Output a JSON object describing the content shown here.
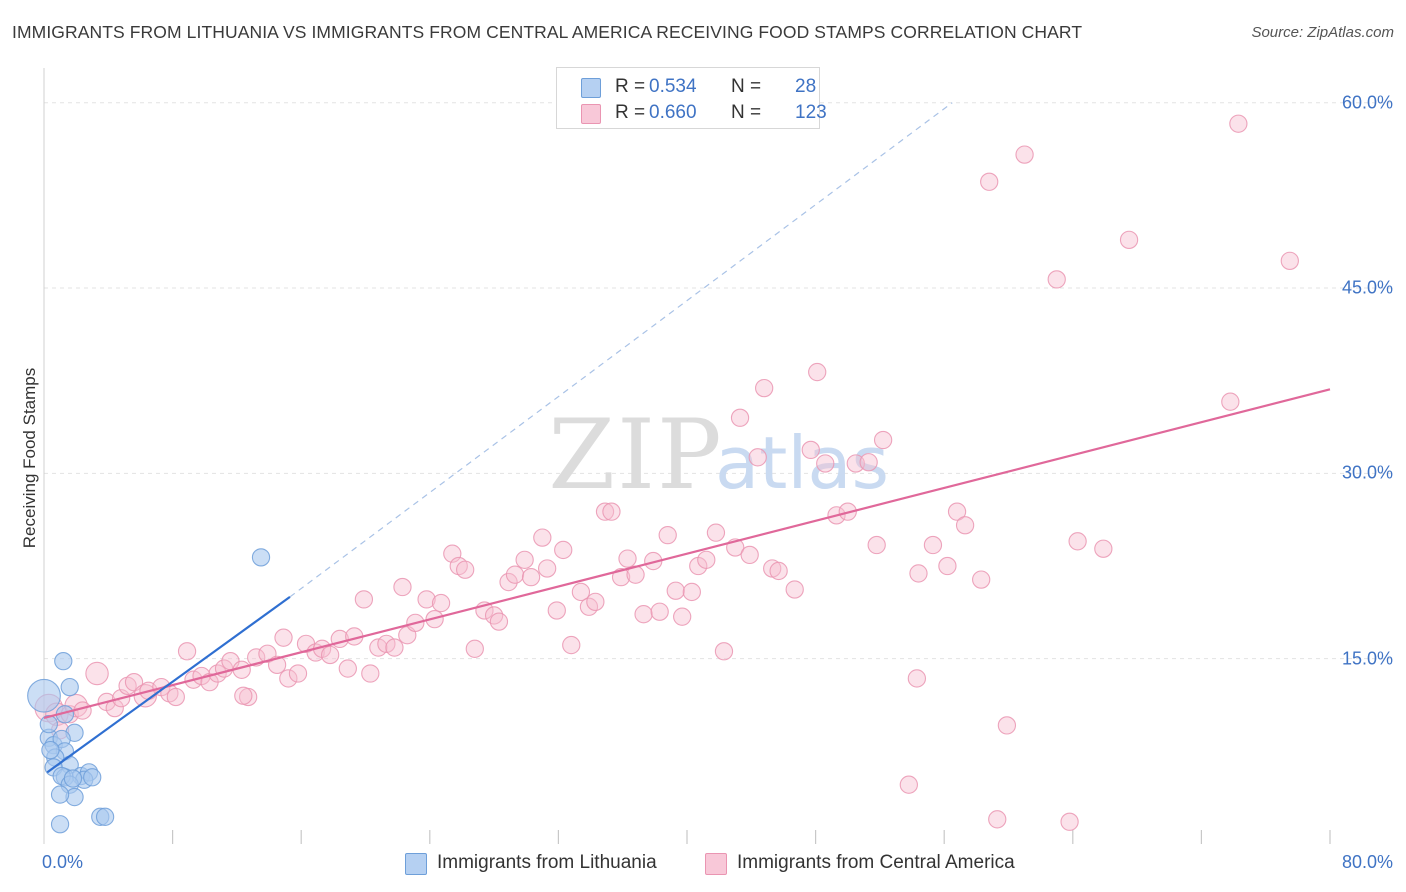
{
  "chart_data": {
    "type": "scatter",
    "title": "IMMIGRANTS FROM LITHUANIA VS IMMIGRANTS FROM CENTRAL AMERICA RECEIVING FOOD STAMPS CORRELATION CHART",
    "source": "Source: ZipAtlas.com",
    "ylabel": "Receiving Food Stamps",
    "xlim": [
      0,
      80
    ],
    "ylim": [
      0,
      62
    ],
    "y_ticks": [
      {
        "value": 15,
        "label": "15.0%"
      },
      {
        "value": 30,
        "label": "30.0%"
      },
      {
        "value": 45,
        "label": "45.0%"
      },
      {
        "value": 60,
        "label": "60.0%"
      }
    ],
    "x_tick_labels": {
      "min": "0.0%",
      "max": "80.0%"
    },
    "watermark": {
      "zip": "ZIP",
      "atlas": "atlas"
    },
    "legend": {
      "r_label": "R =",
      "n_label": "N =",
      "entries": [
        {
          "name": "Immigrants from Lithuania",
          "r": "0.534",
          "n": "28"
        },
        {
          "name": "Immigrants from Central America",
          "r": "0.660",
          "n": "123"
        }
      ]
    },
    "colors": {
      "lithuania_fill": "#a9c8ef",
      "lithuania_stroke": "#6e9fd9",
      "lithuania_line": "#2f6fd1",
      "central_fill": "#f6bfd1",
      "central_stroke": "#ea95b2",
      "central_line": "#e0689a",
      "tick_text": "#3f73c4",
      "grid": "#e3e3e3"
    },
    "series": [
      {
        "name": "Immigrants from Lithuania",
        "trend": {
          "x0": 0.2,
          "y0": 5.8,
          "x1": 15.3,
          "y1": 20.0,
          "dash_x1": 56.5,
          "dash_y1": 60.0
        },
        "points": [
          [
            0.0,
            12.0,
            1.9
          ],
          [
            1.2,
            14.8,
            1
          ],
          [
            1.6,
            12.7,
            1
          ],
          [
            0.3,
            8.6,
            1
          ],
          [
            0.6,
            8.0,
            1
          ],
          [
            1.9,
            9.0,
            1
          ],
          [
            1.1,
            8.5,
            1
          ],
          [
            1.3,
            7.5,
            1
          ],
          [
            0.7,
            7.0,
            1
          ],
          [
            1.6,
            6.4,
            1
          ],
          [
            0.6,
            6.2,
            1
          ],
          [
            1.3,
            5.4,
            1
          ],
          [
            2.3,
            5.5,
            1
          ],
          [
            2.8,
            5.8,
            1
          ],
          [
            2.5,
            5.2,
            1
          ],
          [
            3.0,
            5.4,
            1
          ],
          [
            1.1,
            5.5,
            1
          ],
          [
            1.6,
            4.8,
            1
          ],
          [
            1.9,
            3.8,
            1
          ],
          [
            1.0,
            4.0,
            1
          ],
          [
            3.5,
            2.2,
            1
          ],
          [
            3.8,
            2.2,
            1
          ],
          [
            1.0,
            1.6,
            1
          ],
          [
            13.5,
            23.2,
            1
          ],
          [
            0.3,
            9.7,
            1
          ],
          [
            1.3,
            10.5,
            1
          ],
          [
            0.4,
            7.6,
            1
          ],
          [
            1.8,
            5.3,
            1
          ]
        ]
      },
      {
        "name": "Immigrants from Central America",
        "trend": {
          "x0": 0.0,
          "y0": 10.2,
          "x1": 80.0,
          "y1": 36.8
        },
        "points": [
          [
            0.3,
            11.0,
            1.6
          ],
          [
            0.8,
            10.5,
            1.3
          ],
          [
            1.0,
            9.2,
            1
          ],
          [
            1.6,
            10.5,
            1
          ],
          [
            2.0,
            11.2,
            1.3
          ],
          [
            2.4,
            10.8,
            1
          ],
          [
            3.3,
            13.8,
            1.3
          ],
          [
            3.9,
            11.5,
            1
          ],
          [
            4.4,
            11.0,
            1
          ],
          [
            4.8,
            11.8,
            1
          ],
          [
            5.2,
            12.8,
            1
          ],
          [
            5.6,
            13.1,
            1
          ],
          [
            6.3,
            12.0,
            1.3
          ],
          [
            6.5,
            12.4,
            1
          ],
          [
            7.3,
            12.7,
            1
          ],
          [
            7.8,
            12.2,
            1
          ],
          [
            8.2,
            11.9,
            1
          ],
          [
            8.9,
            15.6,
            1
          ],
          [
            9.3,
            13.3,
            1
          ],
          [
            9.8,
            13.6,
            1
          ],
          [
            10.3,
            13.1,
            1
          ],
          [
            10.8,
            13.8,
            1
          ],
          [
            11.2,
            14.2,
            1
          ],
          [
            11.6,
            14.8,
            1
          ],
          [
            12.3,
            14.1,
            1
          ],
          [
            12.7,
            11.9,
            1
          ],
          [
            13.2,
            15.1,
            1
          ],
          [
            13.9,
            15.4,
            1
          ],
          [
            14.5,
            14.5,
            1
          ],
          [
            14.9,
            16.7,
            1
          ],
          [
            15.2,
            13.4,
            1
          ],
          [
            15.8,
            13.8,
            1
          ],
          [
            16.3,
            16.2,
            1
          ],
          [
            16.9,
            15.5,
            1
          ],
          [
            17.3,
            15.8,
            1
          ],
          [
            17.8,
            15.3,
            1
          ],
          [
            18.4,
            16.6,
            1
          ],
          [
            18.9,
            14.2,
            1
          ],
          [
            19.3,
            16.8,
            1
          ],
          [
            19.9,
            19.8,
            1
          ],
          [
            20.3,
            13.8,
            1
          ],
          [
            20.8,
            15.9,
            1
          ],
          [
            21.3,
            16.2,
            1
          ],
          [
            21.8,
            15.9,
            1
          ],
          [
            22.3,
            20.8,
            1
          ],
          [
            22.6,
            16.9,
            1
          ],
          [
            23.1,
            17.9,
            1
          ],
          [
            23.8,
            19.8,
            1
          ],
          [
            24.3,
            18.2,
            1
          ],
          [
            24.7,
            19.5,
            1
          ],
          [
            25.4,
            23.5,
            1
          ],
          [
            25.8,
            22.5,
            1
          ],
          [
            26.2,
            22.2,
            1
          ],
          [
            26.8,
            15.8,
            1
          ],
          [
            27.4,
            18.9,
            1
          ],
          [
            28.0,
            18.5,
            1
          ],
          [
            28.3,
            18.0,
            1
          ],
          [
            28.9,
            21.2,
            1
          ],
          [
            29.3,
            21.8,
            1
          ],
          [
            29.9,
            23.0,
            1
          ],
          [
            30.3,
            21.6,
            1
          ],
          [
            31.0,
            24.8,
            1
          ],
          [
            31.3,
            22.3,
            1
          ],
          [
            31.9,
            18.9,
            1
          ],
          [
            32.3,
            23.8,
            1
          ],
          [
            32.8,
            16.1,
            1
          ],
          [
            33.4,
            20.4,
            1
          ],
          [
            33.9,
            19.2,
            1
          ],
          [
            34.3,
            19.6,
            1
          ],
          [
            34.9,
            26.9,
            1
          ],
          [
            35.3,
            26.9,
            1
          ],
          [
            35.9,
            21.6,
            1
          ],
          [
            36.3,
            23.1,
            1
          ],
          [
            36.8,
            21.8,
            1
          ],
          [
            37.3,
            18.6,
            1
          ],
          [
            37.9,
            22.9,
            1
          ],
          [
            38.3,
            18.8,
            1
          ],
          [
            38.8,
            25.0,
            1
          ],
          [
            39.3,
            20.5,
            1
          ],
          [
            39.7,
            18.4,
            1
          ],
          [
            40.3,
            20.4,
            1
          ],
          [
            40.7,
            22.5,
            1
          ],
          [
            41.2,
            23.0,
            1
          ],
          [
            41.8,
            25.2,
            1
          ],
          [
            42.3,
            15.6,
            1
          ],
          [
            43.0,
            24.0,
            1
          ],
          [
            43.3,
            34.5,
            1
          ],
          [
            43.9,
            23.4,
            1
          ],
          [
            44.4,
            31.3,
            1
          ],
          [
            44.8,
            36.9,
            1
          ],
          [
            45.3,
            22.3,
            1
          ],
          [
            45.7,
            22.1,
            1
          ],
          [
            46.7,
            20.6,
            1
          ],
          [
            47.7,
            31.9,
            1
          ],
          [
            48.1,
            38.2,
            1
          ],
          [
            48.6,
            30.8,
            1
          ],
          [
            49.3,
            26.6,
            1
          ],
          [
            50.0,
            26.9,
            1
          ],
          [
            50.5,
            30.8,
            1
          ],
          [
            51.3,
            30.9,
            1
          ],
          [
            51.8,
            24.2,
            1
          ],
          [
            52.2,
            32.7,
            1
          ],
          [
            54.3,
            13.4,
            1
          ],
          [
            54.4,
            21.9,
            1
          ],
          [
            55.3,
            24.2,
            1
          ],
          [
            56.2,
            22.5,
            1
          ],
          [
            56.8,
            26.9,
            1
          ],
          [
            57.3,
            25.8,
            1
          ],
          [
            58.3,
            21.4,
            1
          ],
          [
            59.3,
            2.0,
            1
          ],
          [
            59.9,
            9.6,
            1
          ],
          [
            58.8,
            53.6,
            1
          ],
          [
            61.0,
            55.8,
            1
          ],
          [
            63.0,
            45.7,
            1
          ],
          [
            63.8,
            1.8,
            1
          ],
          [
            64.3,
            24.5,
            1
          ],
          [
            65.9,
            23.9,
            1
          ],
          [
            67.5,
            48.9,
            1
          ],
          [
            74.3,
            58.3,
            1
          ],
          [
            73.8,
            35.8,
            1
          ],
          [
            77.5,
            47.2,
            1
          ],
          [
            53.8,
            4.8,
            1
          ],
          [
            12.4,
            12.0,
            1
          ]
        ]
      }
    ]
  }
}
